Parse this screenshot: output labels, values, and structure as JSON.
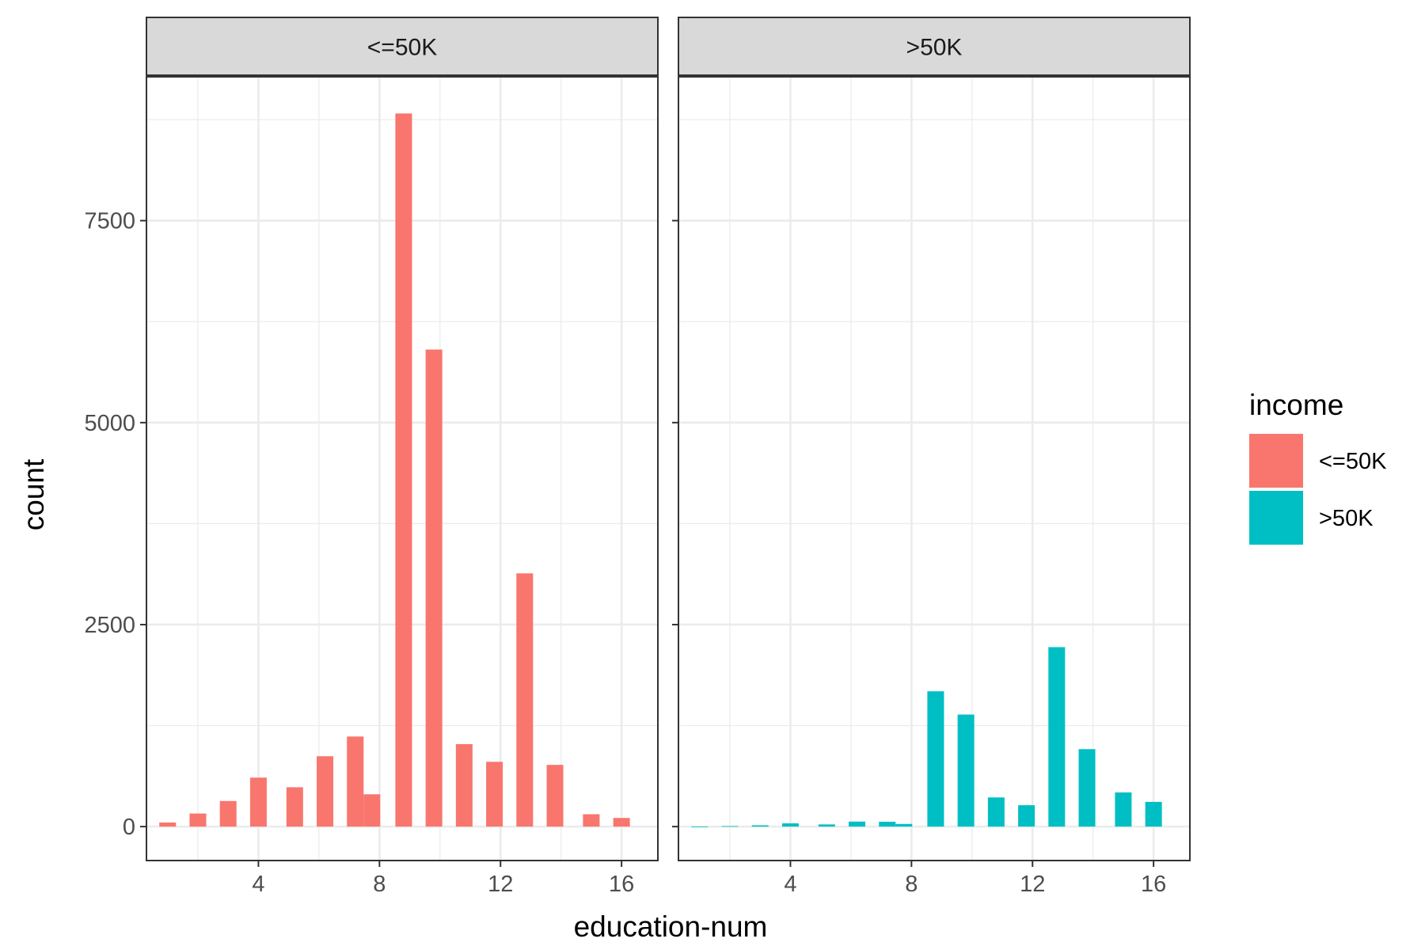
{
  "chart_data": {
    "type": "bar",
    "xlabel": "education-num",
    "ylabel": "count",
    "x_ticks": [
      4,
      8,
      12,
      16
    ],
    "y_ticks": [
      0,
      2500,
      5000,
      7500
    ],
    "xlim": [
      0.3,
      17.2
    ],
    "ylim": [
      -420,
      9280
    ],
    "grid": true,
    "legend_position": "right",
    "legend": {
      "title": "income",
      "entries": [
        {
          "label": "<=50K",
          "color": "#F8766D"
        },
        {
          "label": ">50K",
          "color": "#00BFC4"
        }
      ]
    },
    "bins": [
      {
        "x": 1.0,
        "width": 0.55
      },
      {
        "x": 2.0,
        "width": 0.55
      },
      {
        "x": 3.0,
        "width": 0.55
      },
      {
        "x": 4.0,
        "width": 0.55
      },
      {
        "x": 5.2,
        "width": 0.55
      },
      {
        "x": 6.2,
        "width": 0.55
      },
      {
        "x": 7.2,
        "width": 0.55
      },
      {
        "x": 7.75,
        "width": 0.55
      },
      {
        "x": 8.8,
        "width": 0.55
      },
      {
        "x": 9.8,
        "width": 0.55
      },
      {
        "x": 10.8,
        "width": 0.55
      },
      {
        "x": 11.8,
        "width": 0.55
      },
      {
        "x": 12.8,
        "width": 0.55
      },
      {
        "x": 13.8,
        "width": 0.55
      },
      {
        "x": 15.0,
        "width": 0.55
      },
      {
        "x": 16.0,
        "width": 0.55
      }
    ],
    "panels": [
      {
        "label": "<=50K",
        "color": "#F8766D",
        "values": [
          51,
          162,
          317,
          606,
          487,
          871,
          1115,
          400,
          8826,
          5904,
          1021,
          802,
          3134,
          764,
          153,
          107
        ]
      },
      {
        "label": ">50K",
        "color": "#00BFC4",
        "values": [
          0,
          6,
          16,
          40,
          27,
          62,
          60,
          33,
          1675,
          1387,
          361,
          265,
          2221,
          959,
          423,
          306
        ]
      }
    ]
  }
}
